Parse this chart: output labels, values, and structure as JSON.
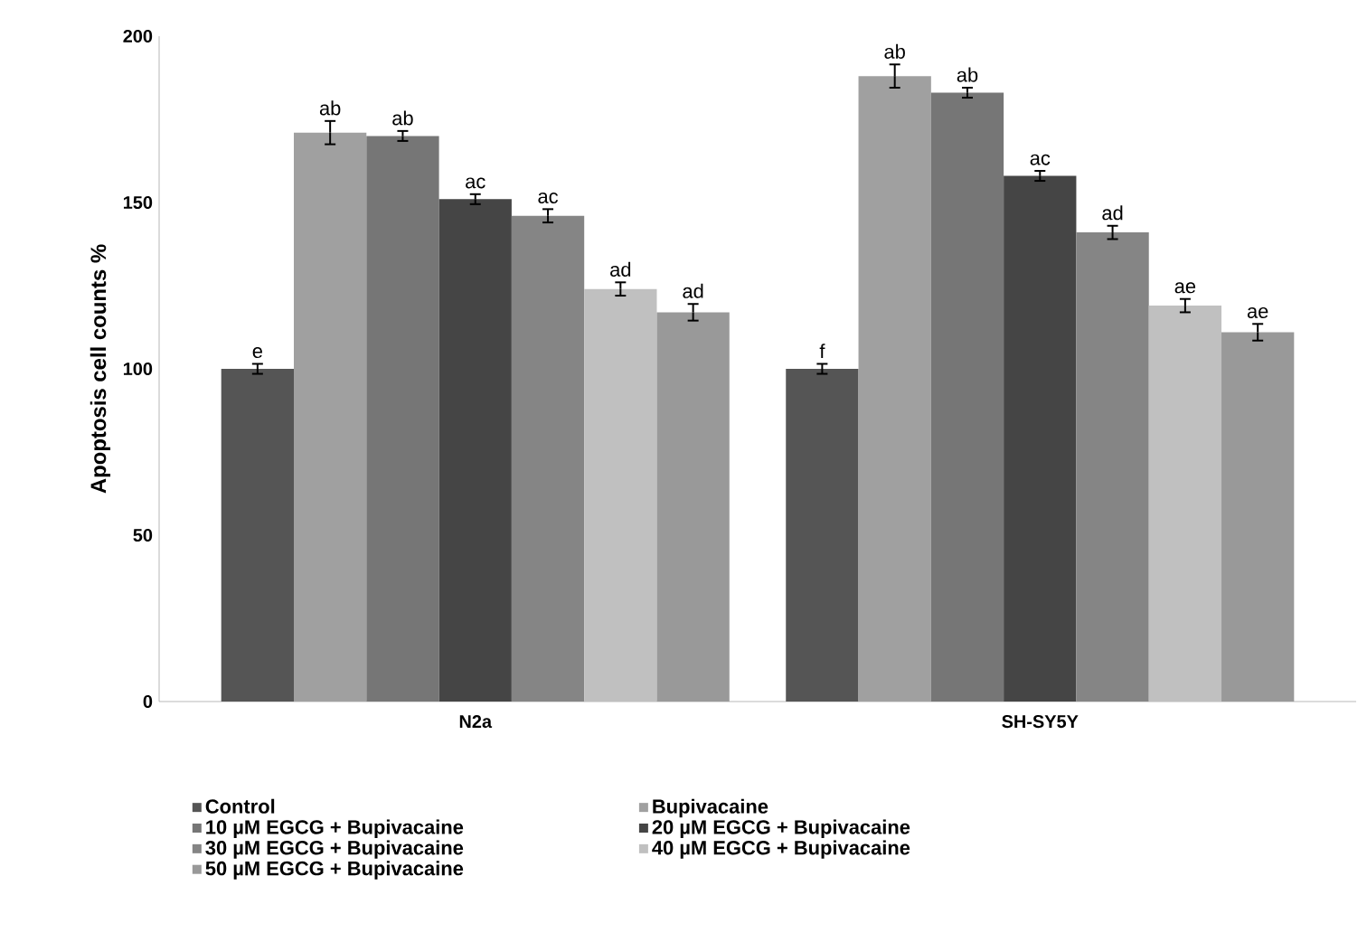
{
  "chart_data": {
    "type": "bar",
    "ylabel": "Apoptosis cell  counts %",
    "categories": [
      "N2a",
      "SH-SY5Y"
    ],
    "ylim": [
      0,
      200
    ],
    "yticks": [
      0,
      50,
      100,
      150,
      200
    ],
    "grid": false,
    "legend": "bottom",
    "series": [
      {
        "name": "Control",
        "color": "#555555",
        "values": [
          100,
          100
        ],
        "errors": [
          1.5,
          1.5
        ],
        "value_labels": [
          "e",
          "f"
        ]
      },
      {
        "name": "Bupivacaine",
        "color": "#a0a0a0",
        "values": [
          171,
          188
        ],
        "errors": [
          3.5,
          3.5
        ],
        "value_labels": [
          "ab",
          "ab"
        ]
      },
      {
        "name": "10 µM EGCG + Bupivacaine",
        "color": "#767676",
        "values": [
          170,
          183
        ],
        "errors": [
          1.5,
          1.5
        ],
        "value_labels": [
          "ab",
          "ab"
        ]
      },
      {
        "name": "20 µM EGCG + Bupivacaine",
        "color": "#454545",
        "values": [
          151,
          158
        ],
        "errors": [
          1.5,
          1.5
        ],
        "value_labels": [
          "ac",
          "ac"
        ]
      },
      {
        "name": "30 µM EGCG + Bupivacaine",
        "color": "#858585",
        "values": [
          146,
          141
        ],
        "errors": [
          2,
          2
        ],
        "value_labels": [
          "ac",
          "ad"
        ]
      },
      {
        "name": "40 µM EGCG + Bupivacaine",
        "color": "#c0c0c0",
        "values": [
          124,
          119
        ],
        "errors": [
          2,
          2
        ],
        "value_labels": [
          "ad",
          "ae"
        ]
      },
      {
        "name": "50 µM EGCG + Bupivacaine",
        "color": "#999999",
        "values": [
          117,
          111
        ],
        "errors": [
          2.5,
          2.5
        ],
        "value_labels": [
          "ad",
          "ae"
        ]
      }
    ]
  }
}
